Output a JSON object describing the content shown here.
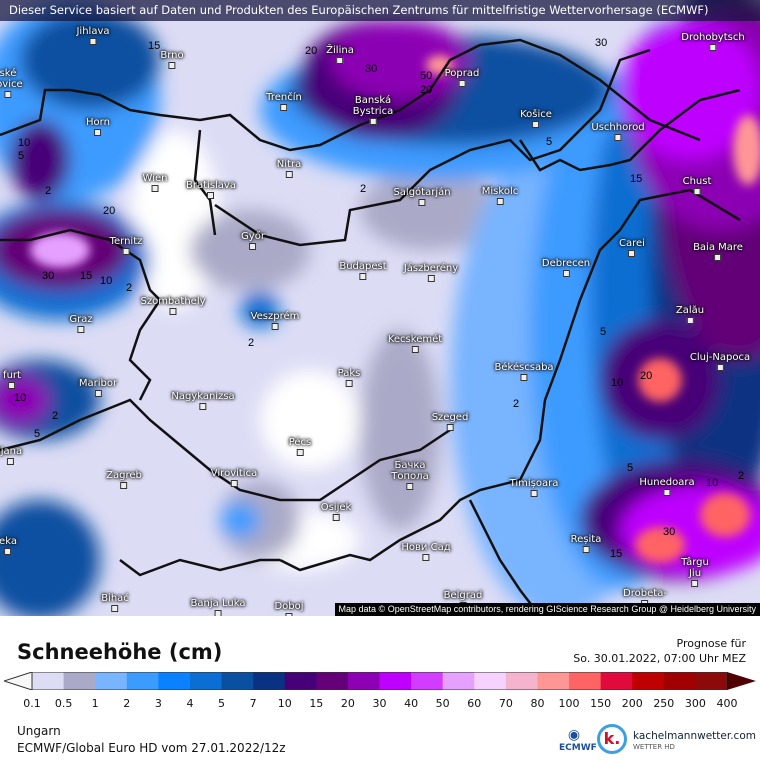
{
  "banner": "Dieser Service basiert auf Daten und Produkten des Europäischen Zentrums für mittelfristige Wettervorhersage (ECMWF)",
  "attribution": "Map data © OpenStreetMap contributors, rendering GIScience Research Group @ Heidelberg University",
  "cities": [
    {
      "name": "Jihlava"
    },
    {
      "name": "Brno"
    },
    {
      "name": "ské\njovice"
    },
    {
      "name": "Horn"
    },
    {
      "name": "Wien"
    },
    {
      "name": "Bratislava"
    },
    {
      "name": "Trenčín"
    },
    {
      "name": "Žilina"
    },
    {
      "name": "Banská\nBystrica"
    },
    {
      "name": "Poprad"
    },
    {
      "name": "Košice"
    },
    {
      "name": "Uschhorod"
    },
    {
      "name": "Drohobytsch"
    },
    {
      "name": "Chust"
    },
    {
      "name": "Nitra"
    },
    {
      "name": "Győr"
    },
    {
      "name": "Salgótarján"
    },
    {
      "name": "Miskolc"
    },
    {
      "name": "Budapest"
    },
    {
      "name": "Jászberény"
    },
    {
      "name": "Debrecen"
    },
    {
      "name": "Carei"
    },
    {
      "name": "Baia Mare"
    },
    {
      "name": "Ternitz"
    },
    {
      "name": "Szombathely"
    },
    {
      "name": "Graz"
    },
    {
      "name": "Veszprém"
    },
    {
      "name": "Zalău"
    },
    {
      "name": "Cluj-Napoca"
    },
    {
      "name": "Kecskemét"
    },
    {
      "name": "Békéscsaba"
    },
    {
      "name": "furt"
    },
    {
      "name": "Maribor"
    },
    {
      "name": "Nagykanizsa"
    },
    {
      "name": "Paks"
    },
    {
      "name": "Szeged"
    },
    {
      "name": "ljana"
    },
    {
      "name": "Pécs"
    },
    {
      "name": "Zagreb"
    },
    {
      "name": "Virovitica"
    },
    {
      "name": "Бачка\nТопола"
    },
    {
      "name": "Timișoara"
    },
    {
      "name": "Hunedoara"
    },
    {
      "name": "Osijek"
    },
    {
      "name": "eka"
    },
    {
      "name": "Нови Сад"
    },
    {
      "name": "Reșita"
    },
    {
      "name": "Târgu\nJiu"
    },
    {
      "name": "Bihać"
    },
    {
      "name": "Banja Luka"
    },
    {
      "name": "Doboj"
    },
    {
      "name": "Belgrad"
    },
    {
      "name": "Drobeta-"
    }
  ],
  "contour_labels": [
    "20",
    "30",
    "30",
    "15",
    "50",
    "20",
    "10",
    "5",
    "5",
    "15",
    "2",
    "2",
    "20",
    "30",
    "15",
    "10",
    "2",
    "2",
    "10",
    "2",
    "5",
    "5",
    "20",
    "10",
    "2",
    "5",
    "10",
    "2",
    "30",
    "15"
  ],
  "legend": {
    "title": "Schneehöhe (cm)",
    "forecast_label": "Prognose für",
    "forecast_time": "So. 30.01.2022, 07:00 Uhr MEZ",
    "ticks": [
      "0.1",
      "0.5",
      "1",
      "2",
      "3",
      "4",
      "5",
      "7",
      "10",
      "15",
      "20",
      "30",
      "40",
      "50",
      "60",
      "70",
      "80",
      "100",
      "150",
      "200",
      "250",
      "300",
      "400"
    ],
    "colors": [
      "#dcdcf5",
      "#aaaac8",
      "#78b4ff",
      "#3c9bff",
      "#0a82ff",
      "#0a6ed2",
      "#0a50a0",
      "#0a3282",
      "#460078",
      "#640078",
      "#8c00b4",
      "#be00ff",
      "#d23cff",
      "#e6a0ff",
      "#f5d2ff",
      "#f5b4cd",
      "#ff9696",
      "#ff6464",
      "#e10a3c",
      "#be0000",
      "#a00000",
      "#8c0a0a"
    ],
    "under_color": "#f8f8f8",
    "over_color": "#500000"
  },
  "footer": {
    "region": "Ungarn",
    "model": "ECMWF/Global Euro HD vom  27.01.2022/12z",
    "ecmwf_logo": "ECMWF",
    "brand": "kachelmannwetter.com",
    "brand_sub": "WETTER HD",
    "brand_logo": "k."
  }
}
